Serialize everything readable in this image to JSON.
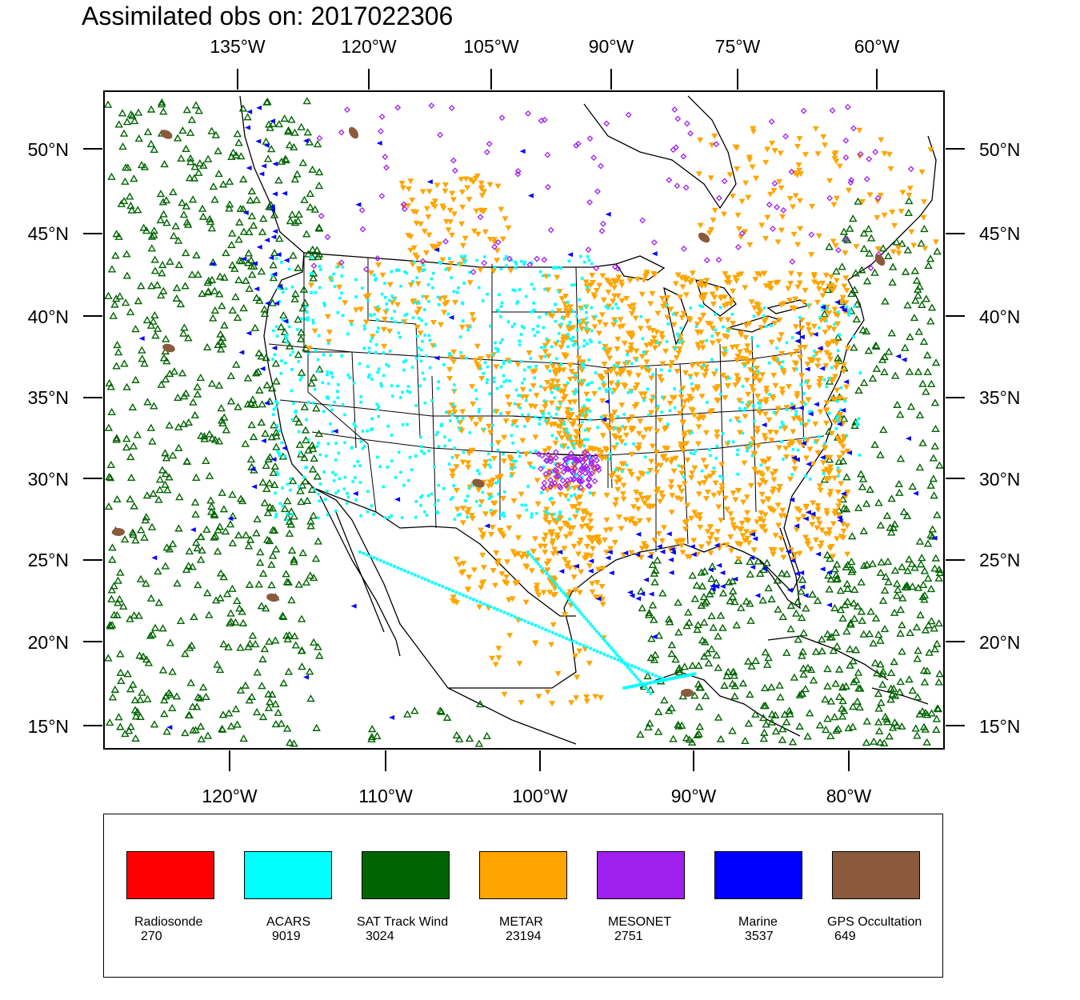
{
  "title": "Assimilated obs on: 2017022306",
  "map": {
    "top_lon_labels": [
      "135°W",
      "120°W",
      "105°W",
      "90°W",
      "75°W",
      "60°W"
    ],
    "bottom_lon_labels": [
      "120°W",
      "110°W",
      "100°W",
      "90°W",
      "80°W"
    ],
    "lat_labels": [
      "50°N",
      "45°N",
      "40°N",
      "35°N",
      "30°N",
      "25°N",
      "20°N",
      "15°N"
    ]
  },
  "legend": {
    "items": [
      {
        "name": "Radiosonde",
        "count": "270",
        "color": "#ff0000",
        "marker": "circle"
      },
      {
        "name": "ACARS",
        "count": "9019",
        "color": "#00ffff",
        "marker": "square"
      },
      {
        "name": "SAT Track Wind",
        "count": "3024",
        "color": "#006400",
        "marker": "triangle-up"
      },
      {
        "name": "METAR",
        "count": "23194",
        "color": "#ffa500",
        "marker": "triangle-down"
      },
      {
        "name": "MESONET",
        "count": "2751",
        "color": "#a020f0",
        "marker": "diamond"
      },
      {
        "name": "Marine",
        "count": "3537",
        "color": "#0000ff",
        "marker": "triangle-left"
      },
      {
        "name": "GPS Occultation",
        "count": "649",
        "color": "#8b5a3c",
        "marker": "blob"
      }
    ]
  }
}
